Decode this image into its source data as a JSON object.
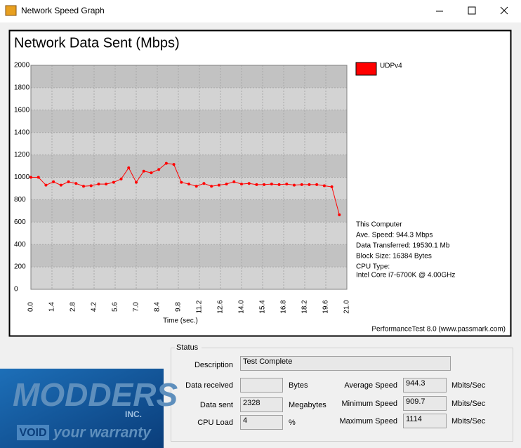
{
  "window": {
    "title": "Network Speed Graph"
  },
  "chart_data": {
    "type": "line",
    "title": "Network Data Sent (Mbps)",
    "x_label": "Time (sec.)",
    "x": [
      0,
      0.5,
      1,
      1.5,
      2,
      2.5,
      3,
      3.5,
      4,
      4.5,
      5,
      5.5,
      6,
      6.5,
      7,
      7.5,
      8,
      8.5,
      9,
      9.5,
      10,
      10.5,
      11,
      11.5,
      12,
      12.5,
      13,
      13.5,
      14,
      14.5,
      15,
      15.5,
      16,
      16.5,
      17,
      17.5,
      18,
      18.5,
      19,
      19.5,
      20,
      20.5
    ],
    "series": [
      {
        "name": "UDPv4",
        "color": "#ff0000",
        "values": [
          1000,
          1000,
          930,
          960,
          930,
          960,
          945,
          920,
          925,
          940,
          940,
          955,
          985,
          1085,
          955,
          1055,
          1040,
          1070,
          1125,
          1115,
          955,
          940,
          920,
          945,
          920,
          930,
          940,
          960,
          940,
          945,
          935,
          935,
          940,
          935,
          940,
          930,
          935,
          935,
          935,
          925,
          915,
          665
        ]
      }
    ],
    "xlim": [
      0,
      21
    ],
    "ylim": [
      0,
      2000
    ],
    "xticks": [
      {
        "value": 0,
        "label": "0.0"
      },
      1.4,
      2.8,
      4.2,
      5.6,
      {
        "value": 7,
        "label": "7.0"
      },
      8.4,
      9.8,
      11.2,
      12.6,
      {
        "value": 14,
        "label": "14.0"
      },
      15.4,
      16.8,
      18.2,
      19.6,
      {
        "value": 21,
        "label": "21.0"
      }
    ],
    "yticks": [
      0,
      200,
      400,
      600,
      800,
      1000,
      1200,
      1400,
      1600,
      1800,
      2000
    ],
    "grid": true,
    "legend": "right",
    "info": [
      "This Computer",
      "Ave. Speed: 944.3 Mbps",
      "Data Transferred: 19530.1 Mb",
      "Block Size: 16384 Bytes",
      "CPU Type:",
      "Intel Core i7-6700K @ 4.00GHz"
    ],
    "footer": "PerformanceTest 8.0 (www.passmark.com)"
  },
  "status": {
    "title": "Status",
    "description": {
      "label": "Description",
      "value": "Test Complete"
    },
    "left": [
      {
        "label": "Data received",
        "unit": "Bytes"
      },
      {
        "label": "Data sent",
        "value": "2328",
        "unit": "Megabytes"
      },
      {
        "label": "CPU Load",
        "value": "4",
        "unit": "%"
      }
    ],
    "right": [
      {
        "label": "Average Speed",
        "value": "944.3",
        "unit": "Mbits/Sec"
      },
      {
        "label": "Minimum Speed",
        "value": "909.7",
        "unit": "Mbits/Sec"
      },
      {
        "label": "Maximum Speed",
        "value": "1114",
        "unit": "Mbits/Sec"
      }
    ]
  },
  "logo": {
    "name": "MODDERS",
    "suffix": "INC.",
    "badge": "VOID",
    "tagline": "your warranty"
  }
}
